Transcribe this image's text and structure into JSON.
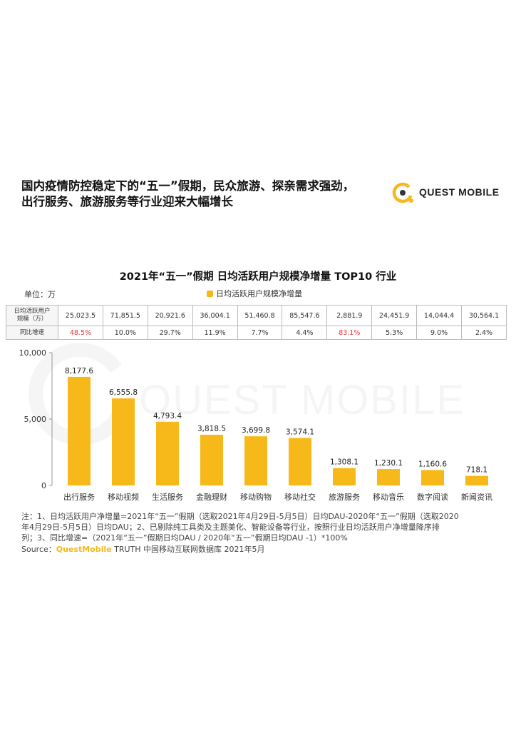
{
  "headline": {
    "line1": "国内疫情防控稳定下的“五一”假期，民众旅游、探亲需求强劲，",
    "line2": "出行服务、旅游服务等行业迎来大幅增长"
  },
  "logo": {
    "text": "QUEST MOBILE"
  },
  "unit_label": "单位：万",
  "table": {
    "row1_header": [
      "日均活跃用户",
      "规模（万）"
    ],
    "row2_header": "同比增速",
    "dau": [
      "25,023.5",
      "71,851.5",
      "20,921.6",
      "36,004.1",
      "51,460.8",
      "85,547.6",
      "2,881.9",
      "24,451.9",
      "14,044.4",
      "30,564.1"
    ],
    "growth": [
      "48.5%",
      "10.0%",
      "29.7%",
      "11.9%",
      "7.7%",
      "4.4%",
      "83.1%",
      "5.3%",
      "9.0%",
      "2.4%"
    ],
    "highlight": [
      true,
      false,
      false,
      false,
      false,
      false,
      true,
      false,
      false,
      false
    ]
  },
  "chart_data": {
    "type": "bar",
    "title": "2021年“五一”假期 日均活跃用户规模净增量 TOP10 行业",
    "categories": [
      "出行服务",
      "移动视频",
      "生活服务",
      "金融理财",
      "移动购物",
      "移动社交",
      "旅游服务",
      "移动音乐",
      "数字阅读",
      "新闻资讯"
    ],
    "series": [
      {
        "name": "日均活跃用户规模净增量",
        "values": [
          8177.6,
          6555.8,
          4793.4,
          3818.5,
          3699.8,
          3574.1,
          1308.1,
          1230.1,
          1160.6,
          718.1
        ]
      }
    ],
    "value_labels": [
      "8,177.6",
      "6,555.8",
      "4,793.4",
      "3,818.5",
      "3,699.8",
      "3,574.1",
      "1,308.1",
      "1,230.1",
      "1,160.6",
      "718.1"
    ],
    "ylim": [
      0,
      10000
    ],
    "yticks": [
      0,
      5000,
      10000
    ],
    "ytick_labels": [
      "0",
      "5,000",
      "10,000"
    ],
    "xlabel": "",
    "ylabel": "",
    "grid": false,
    "legend": "top-center",
    "bar_color": "#f7b81a"
  },
  "notes": {
    "line1": "注：1、日均活跃用户净增量=2021年“五一”假期（选取2021年4月29日-5月5日）日均DAU-2020年“五一”假期（选取2020",
    "line2": "年4月29日-5月5日）日均DAU；2、已剔除纯工具类及主题美化、智能设备等行业，按照行业日均活跃用户净增量降序排",
    "line3": "列；3、同比增速=（2021年“五一”假期日均DAU / 2020年“五一”假期日均DAU -1）*100%"
  },
  "source": {
    "prefix": "Source：",
    "brand": "QuestMobile",
    "rest": " TRUTH 中国移动互联网数据库 2021年5月"
  }
}
